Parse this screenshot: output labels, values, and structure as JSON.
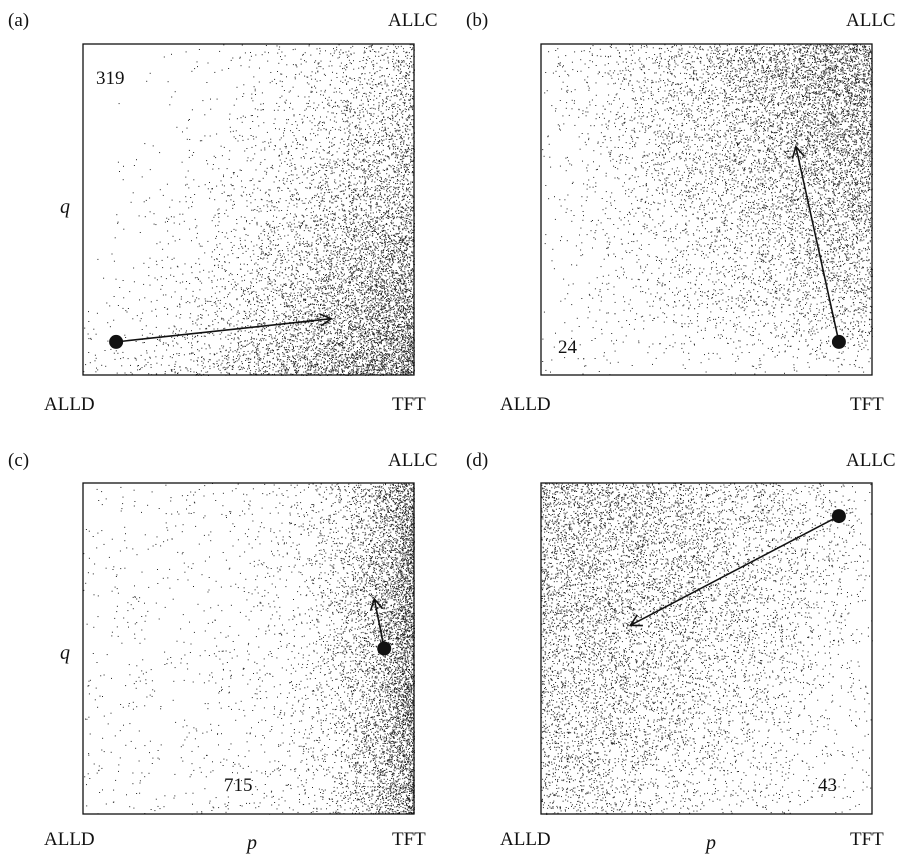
{
  "chart_data": [
    {
      "type": "scatter",
      "panel_label": "(a)",
      "corner_labels": {
        "top_right": "ALLC",
        "bottom_left": "ALLD",
        "bottom_right": "TFT"
      },
      "xlabel": "",
      "ylabel": "q",
      "xlim": [
        0,
        1
      ],
      "ylim": [
        0,
        1
      ],
      "annotation": "319",
      "start_point": {
        "x": 0.1,
        "y": 0.1
      },
      "arrow_end": {
        "x": 0.75,
        "y": 0.17
      },
      "density": "concentrated near bottom-right (TFT), spreading toward low q"
    },
    {
      "type": "scatter",
      "panel_label": "(b)",
      "corner_labels": {
        "top_right": "ALLC",
        "bottom_left": "ALLD",
        "bottom_right": "TFT"
      },
      "xlabel": "",
      "ylabel": "",
      "xlim": [
        0,
        1
      ],
      "ylim": [
        0,
        1
      ],
      "annotation": "24",
      "start_point": {
        "x": 0.9,
        "y": 0.1
      },
      "arrow_end": {
        "x": 0.77,
        "y": 0.69
      },
      "density": "concentrated at high p and high q (top-right)"
    },
    {
      "type": "scatter",
      "panel_label": "(c)",
      "corner_labels": {
        "top_right": "ALLC",
        "bottom_left": "ALLD",
        "bottom_right": "TFT"
      },
      "xlabel": "p",
      "ylabel": "q",
      "xlim": [
        0,
        1
      ],
      "ylim": [
        0,
        1
      ],
      "annotation": "715",
      "start_point": {
        "x": 0.91,
        "y": 0.5
      },
      "arrow_end": {
        "x": 0.88,
        "y": 0.65
      },
      "density": "concentrated along right edge (p near 1)"
    },
    {
      "type": "scatter",
      "panel_label": "(d)",
      "corner_labels": {
        "top_right": "ALLC",
        "bottom_left": "ALLD",
        "bottom_right": "TFT"
      },
      "xlabel": "p",
      "ylabel": "",
      "xlim": [
        0,
        1
      ],
      "ylim": [
        0,
        1
      ],
      "annotation": "43",
      "start_point": {
        "x": 0.9,
        "y": 0.9
      },
      "arrow_end": {
        "x": 0.27,
        "y": 0.57
      },
      "density": "spread over low p (left side), sparse at right-bottom"
    }
  ]
}
